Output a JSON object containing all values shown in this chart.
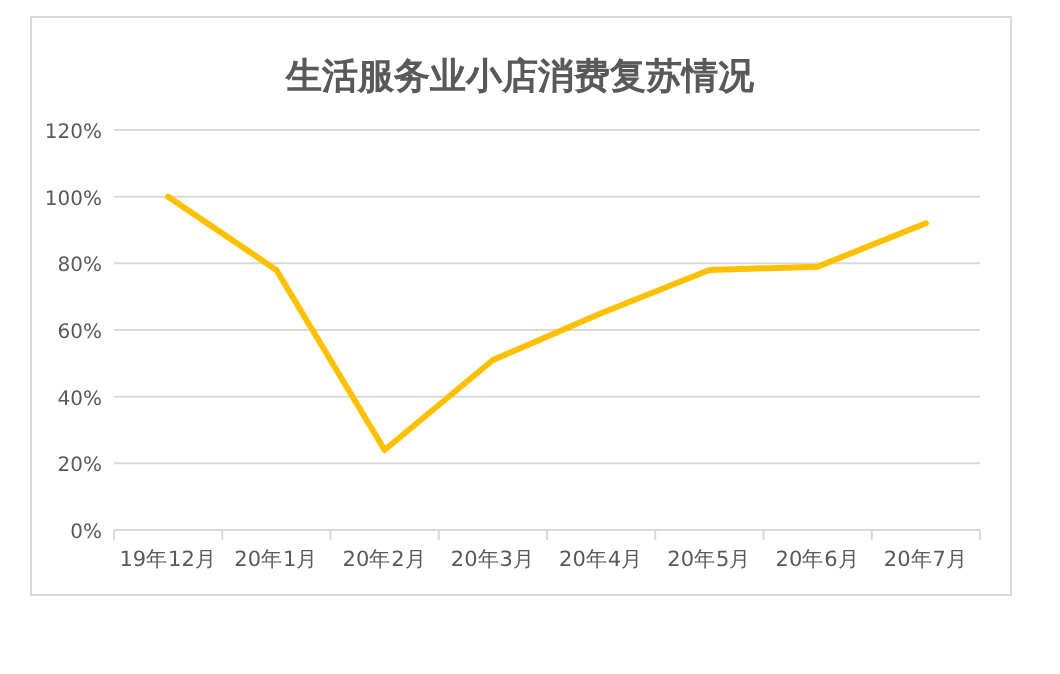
{
  "chart_data": {
    "type": "line",
    "title": "生活服务业小店消费复苏情况",
    "categories": [
      "19年12月",
      "20年1月",
      "20年2月",
      "20年3月",
      "20年4月",
      "20年5月",
      "20年6月",
      "20年7月"
    ],
    "series": [
      {
        "color": "#ffc000",
        "values": [
          100,
          78,
          24,
          51,
          65,
          78,
          79,
          92
        ]
      }
    ],
    "ylim": [
      0,
      120
    ],
    "yticks": [
      {
        "value": 0,
        "label": "0%"
      },
      {
        "value": 20,
        "label": "20%"
      },
      {
        "value": 40,
        "label": "40%"
      },
      {
        "value": 60,
        "label": "60%"
      },
      {
        "value": 80,
        "label": "80%"
      },
      {
        "value": 100,
        "label": "100%"
      },
      {
        "value": 120,
        "label": "120%"
      }
    ],
    "grid": "y"
  }
}
